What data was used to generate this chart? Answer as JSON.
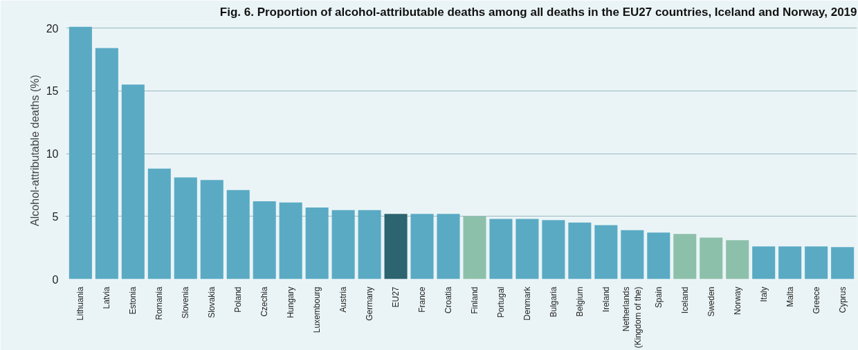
{
  "chart_data": {
    "type": "bar",
    "title": "Fig. 6. Proportion of alcohol-attributable deaths among all deaths in the EU27 countries, Iceland and Norway, 2019",
    "ylabel": "Alcohol-attributable deaths (%)",
    "categories": [
      "Lithuania",
      "Latvia",
      "Estonia",
      "Romania",
      "Slovenia",
      "Slovakia",
      "Poland",
      "Czechia",
      "Hungary",
      "Luxembourg",
      "Austria",
      "Germany",
      "EU27",
      "France",
      "Croatia",
      "Finland",
      "Portugal",
      "Denmark",
      "Bulgaria",
      "Belgium",
      "Ireland",
      "Netherlands\n(Kingdom of the)",
      "Spain",
      "Iceland",
      "Sweden",
      "Norway",
      "Italy",
      "Malta",
      "Greece",
      "Cyprus"
    ],
    "values": [
      20.1,
      18.4,
      15.5,
      8.8,
      8.1,
      7.9,
      7.1,
      6.2,
      6.1,
      5.7,
      5.5,
      5.5,
      5.2,
      5.2,
      5.2,
      5.0,
      4.8,
      4.8,
      4.7,
      4.5,
      4.3,
      3.9,
      3.7,
      3.6,
      3.3,
      3.1,
      2.6,
      2.6,
      2.6,
      2.55
    ],
    "colors": [
      "#5aaac4",
      "#5aaac4",
      "#5aaac4",
      "#5aaac4",
      "#5aaac4",
      "#5aaac4",
      "#5aaac4",
      "#5aaac4",
      "#5aaac4",
      "#5aaac4",
      "#5aaac4",
      "#5aaac4",
      "#2c6470",
      "#5aaac4",
      "#5aaac4",
      "#8dc0aa",
      "#5aaac4",
      "#5aaac4",
      "#5aaac4",
      "#5aaac4",
      "#5aaac4",
      "#5aaac4",
      "#5aaac4",
      "#8dc0aa",
      "#8dc0aa",
      "#8dc0aa",
      "#5aaac4",
      "#5aaac4",
      "#5aaac4",
      "#5aaac4"
    ],
    "ylim": [
      0,
      20.5
    ],
    "yticks": [
      0,
      5,
      10,
      15,
      20
    ],
    "grid": "y"
  }
}
